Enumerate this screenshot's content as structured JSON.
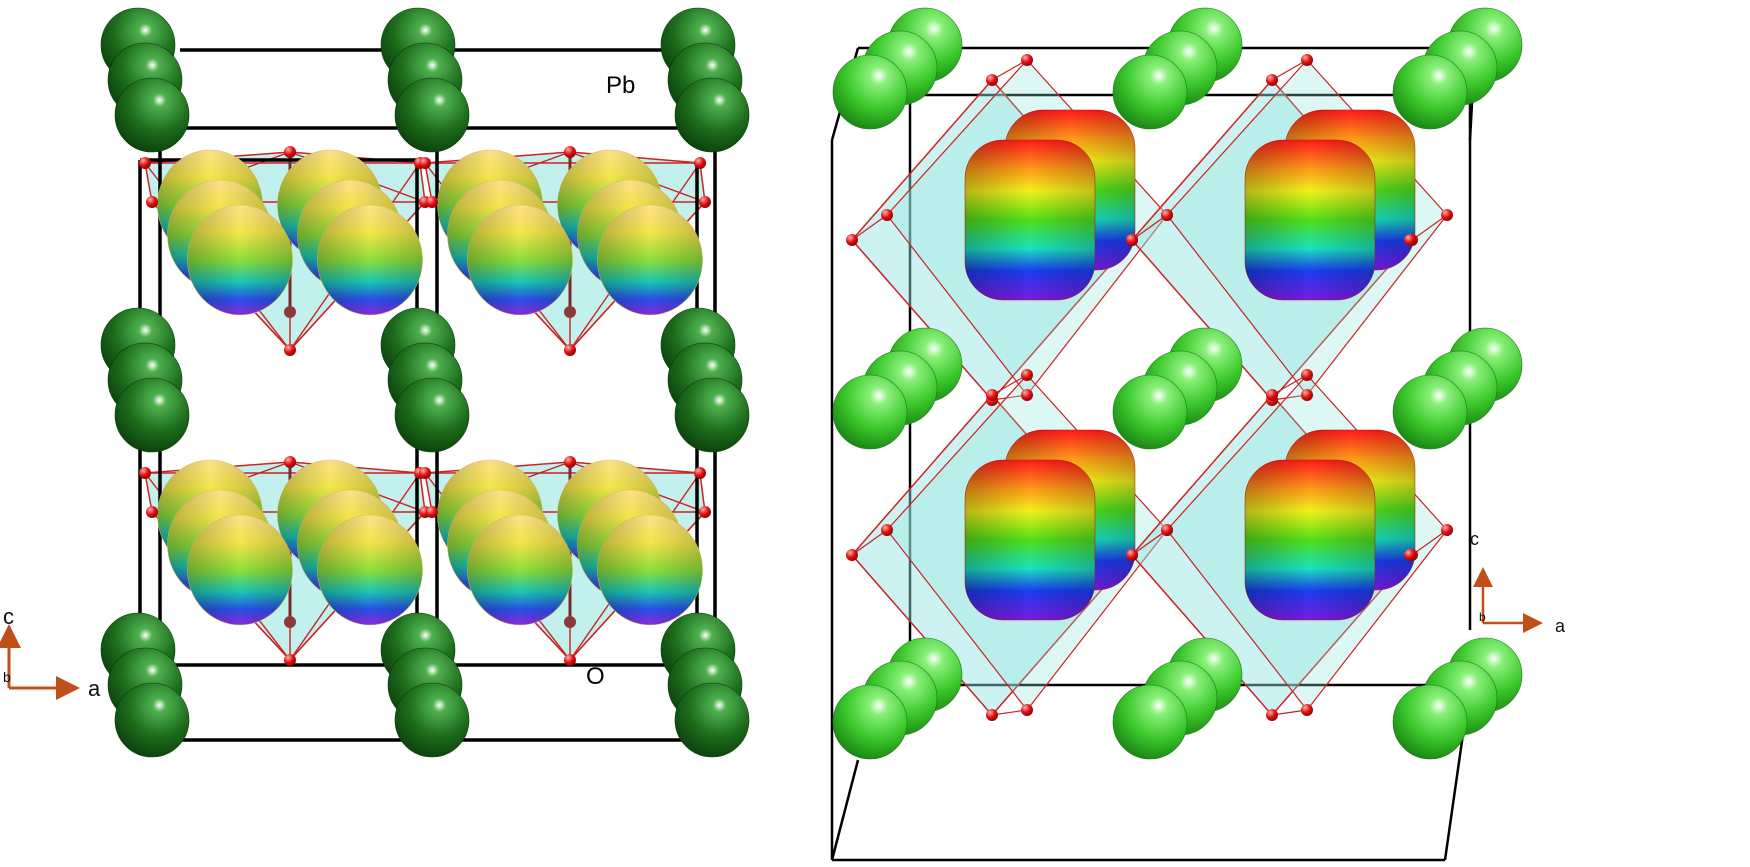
{
  "left_panel": {
    "atom_label_top": "Pb",
    "atom_label_bottom": "O",
    "axes": {
      "vertical": "c",
      "horizontal": "a",
      "into_page": "b"
    }
  },
  "right_panel": {
    "axes": {
      "vertical": "c",
      "horizontal": "a",
      "into_page": "b"
    }
  },
  "colors": {
    "pb_left": "#1f7a1f",
    "pb_right": "#3fd02e",
    "oxygen": "#e01010",
    "polyhedron_fill": "#8fe3df",
    "bond": "#cc2222",
    "cell_edge": "#000000",
    "axis": "#c0501a"
  },
  "icons": [
    "lone-pair-lobe",
    "axis-triad"
  ]
}
